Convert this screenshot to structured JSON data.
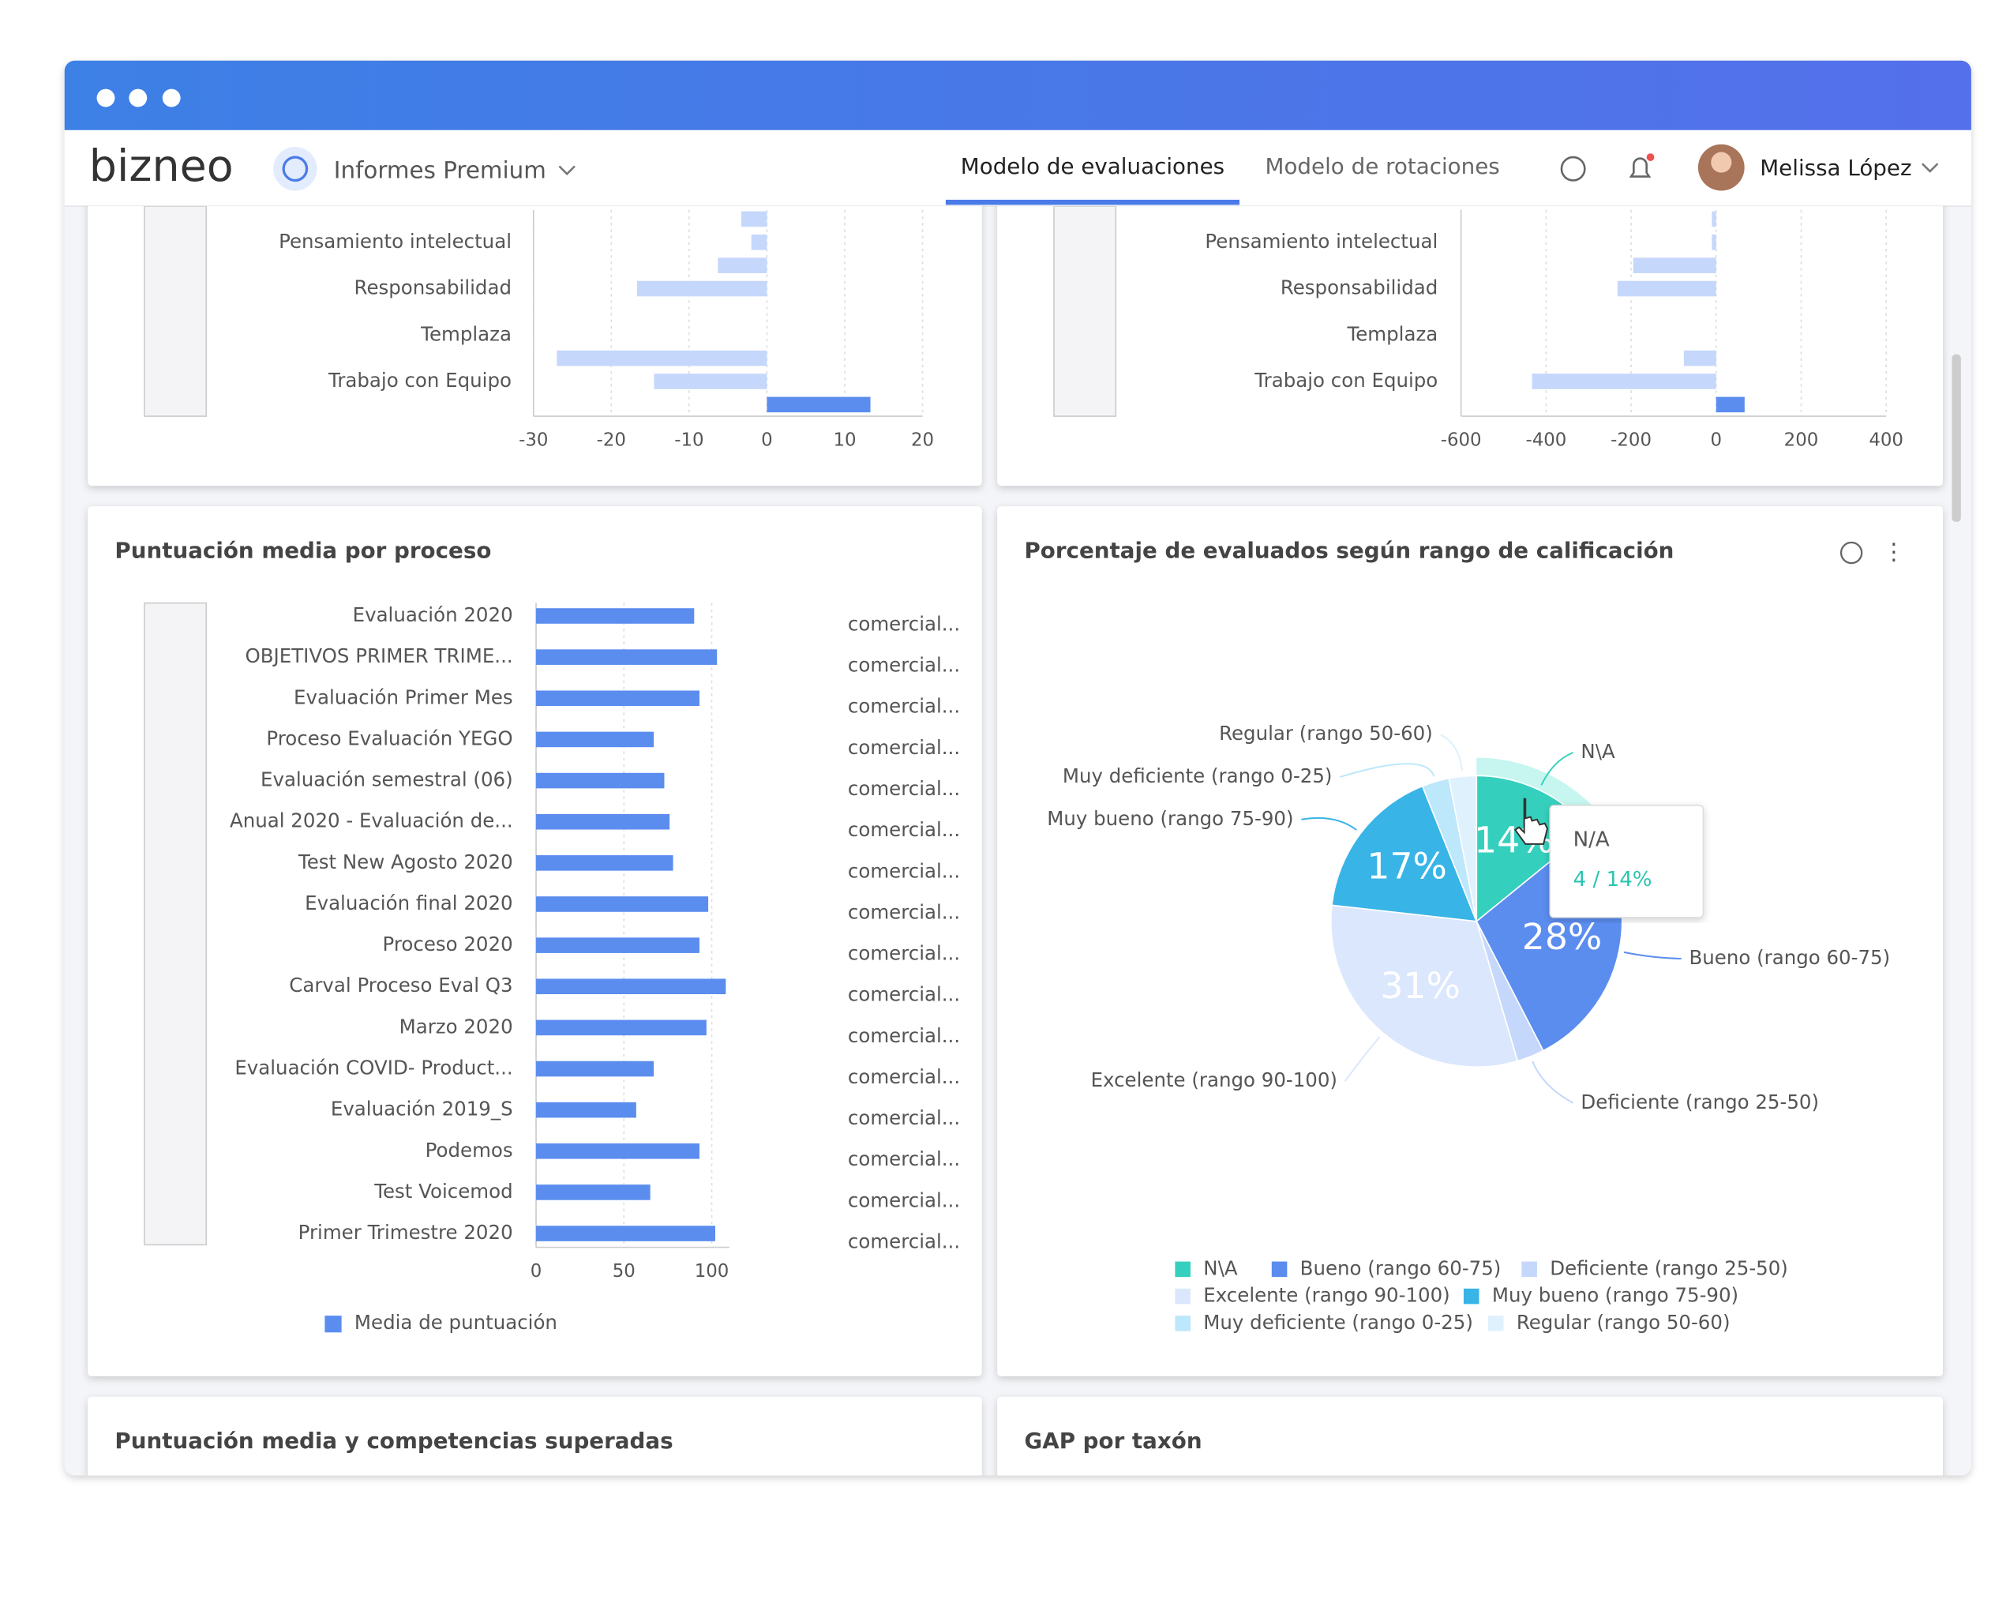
{
  "header": {
    "brand": "bizneo",
    "module": "Informes Premium",
    "tabs": [
      "Modelo de evaluaciones",
      "Modelo de rotaciones"
    ],
    "user": "Melissa López"
  },
  "chart_data": [
    {
      "type": "bar",
      "orientation": "horizontal",
      "categories": [
        null,
        "Pensamiento intelectual",
        null,
        "Responsabilidad",
        null,
        "Templaza",
        null,
        "Trabajo con Equipo",
        null
      ],
      "values": [
        -3.3,
        -2,
        -6.3,
        -16.7,
        0,
        0,
        -27,
        -14.5,
        13.3
      ],
      "color": "#c5d7fb",
      "positive_color": "#5b8def",
      "xlim": [
        -30,
        20
      ],
      "xticks": [
        -30,
        -20,
        -10,
        0,
        10,
        20
      ],
      "grid": true
    },
    {
      "type": "bar",
      "orientation": "horizontal",
      "categories": [
        null,
        "Pensamiento intelectual",
        null,
        "Responsabilidad",
        null,
        "Templaza",
        null,
        "Trabajo con Equipo",
        null
      ],
      "values": [
        -10,
        -10,
        -195,
        -232,
        0,
        0,
        -76,
        -433,
        67
      ],
      "color": "#c5d7fb",
      "positive_color": "#5b8def",
      "xlim": [
        -600,
        400
      ],
      "xticks": [
        -600,
        -400,
        -200,
        0,
        200,
        400
      ],
      "grid": true
    },
    {
      "type": "bar",
      "orientation": "horizontal",
      "title": "Puntuación media por proceso",
      "categories": [
        "Evaluación 2020",
        "OBJETIVOS PRIMER TRIME...",
        "Evaluación Primer Mes",
        "Proceso Evaluación YEGO",
        "Evaluación semestral (06)",
        "Anual 2020 - Evaluación de...",
        "Test New Agosto 2020",
        "Evaluación final 2020",
        "Proceso 2020",
        "Carval Proceso Eval Q3",
        "Marzo 2020",
        "Evaluación COVID- Product...",
        "Evaluación 2019_S",
        "Podemos",
        "Test Voicemod",
        "Primer Trimestre 2020"
      ],
      "series": [
        {
          "name": "Media de puntuación",
          "color": "#5b8def",
          "values": [
            90,
            103,
            93,
            67,
            73,
            76,
            78,
            98,
            93,
            108,
            97,
            67,
            57,
            93,
            65,
            102
          ]
        }
      ],
      "groups": [
        "comercial...",
        "comercial...",
        "comercial...",
        "comercial...",
        "comercial...",
        "comercial...",
        "comercial...",
        "comercial...",
        "comercial...",
        "comercial...",
        "comercial...",
        "comercial...",
        "comercial...",
        "comercial...",
        "comercial...",
        "comercial..."
      ],
      "xlim": [
        0,
        110
      ],
      "xticks": [
        0,
        50,
        100
      ],
      "grid": true
    },
    {
      "type": "pie",
      "title": "Porcentaje de evaluados según rango de calificación",
      "categories": [
        "N\\A",
        "Bueno (rango 60-75)",
        "Deficiente (rango 25-50)",
        "Excelente (rango 90-100)",
        "Muy bueno (rango 75-90)",
        "Muy deficiente (rango 0-25)",
        "Regular (rango 50-60)"
      ],
      "values": [
        14,
        28,
        3,
        31,
        17,
        3,
        3
      ],
      "value_labels": [
        "14%",
        "28%",
        null,
        "31%",
        "17%",
        null,
        null
      ],
      "colors": [
        "#35d0bd",
        "#5b8def",
        "#c5d7fb",
        "#dbe7fd",
        "#38b4e6",
        "#bde7fb",
        "#dff1fd"
      ],
      "tooltip": {
        "title": "N/A",
        "text": "4 / 14%"
      }
    }
  ],
  "bottom_panels": [
    "Puntuación media y competencias superadas",
    "GAP por taxón"
  ]
}
